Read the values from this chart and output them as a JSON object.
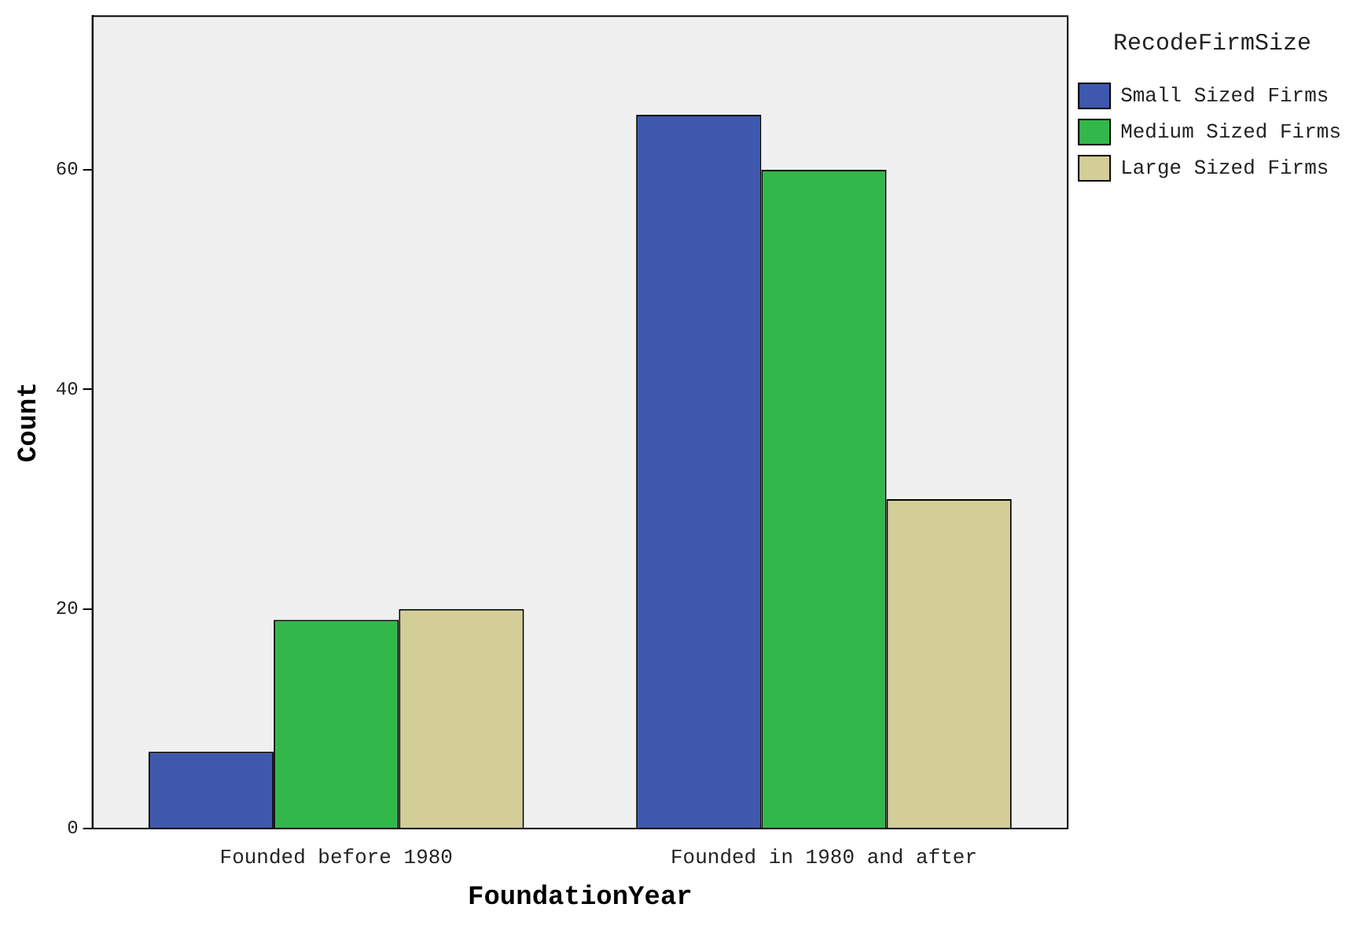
{
  "chart_data": {
    "type": "bar",
    "xlabel": "FoundationYear",
    "ylabel": "Count",
    "legend_title": "RecodeFirmSize",
    "categories": [
      "Founded before 1980",
      "Founded in 1980 and after"
    ],
    "series": [
      {
        "name": "Small Sized Firms",
        "color": "#3e58ac",
        "values": [
          7,
          65
        ]
      },
      {
        "name": "Medium Sized Firms",
        "color": "#32b84a",
        "values": [
          19,
          60
        ]
      },
      {
        "name": "Large Sized Firms",
        "color": "#d3ce97",
        "values": [
          20,
          30
        ]
      }
    ],
    "ylim": [
      0,
      74
    ],
    "yticks": [
      0,
      20,
      40,
      60
    ],
    "grid": false,
    "legend": "top right"
  }
}
